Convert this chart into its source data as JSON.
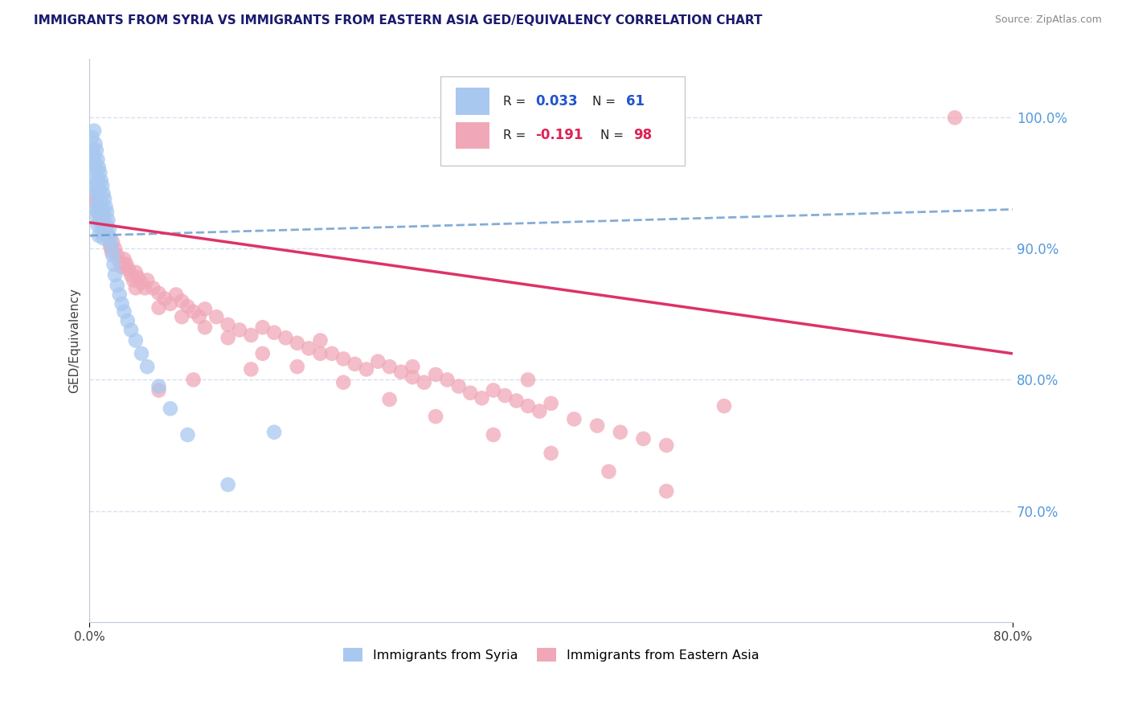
{
  "title": "IMMIGRANTS FROM SYRIA VS IMMIGRANTS FROM EASTERN ASIA GED/EQUIVALENCY CORRELATION CHART",
  "source": "Source: ZipAtlas.com",
  "ylabel": "GED/Equivalency",
  "ytick_values": [
    0.7,
    0.8,
    0.9,
    1.0
  ],
  "xlim": [
    0.0,
    0.8
  ],
  "ylim": [
    0.615,
    1.045
  ],
  "color_syria": "#a8c8f0",
  "color_eastern": "#f0a8b8",
  "trendline_syria_color": "#6699cc",
  "trendline_eastern_color": "#dd3366",
  "background_color": "#ffffff",
  "grid_color": "#d8dff0",
  "r_syria": 0.033,
  "n_syria": 61,
  "r_eastern": -0.191,
  "n_eastern": 98,
  "syria_x": [
    0.002,
    0.003,
    0.003,
    0.004,
    0.004,
    0.004,
    0.005,
    0.005,
    0.005,
    0.005,
    0.006,
    0.006,
    0.006,
    0.006,
    0.007,
    0.007,
    0.007,
    0.007,
    0.008,
    0.008,
    0.008,
    0.008,
    0.009,
    0.009,
    0.009,
    0.01,
    0.01,
    0.01,
    0.011,
    0.011,
    0.011,
    0.012,
    0.012,
    0.012,
    0.013,
    0.013,
    0.014,
    0.014,
    0.015,
    0.015,
    0.016,
    0.017,
    0.018,
    0.019,
    0.02,
    0.021,
    0.022,
    0.024,
    0.026,
    0.028,
    0.03,
    0.033,
    0.036,
    0.04,
    0.045,
    0.05,
    0.06,
    0.07,
    0.085,
    0.12,
    0.16
  ],
  "syria_y": [
    0.985,
    0.975,
    0.96,
    0.99,
    0.97,
    0.95,
    0.98,
    0.965,
    0.948,
    0.93,
    0.975,
    0.96,
    0.942,
    0.925,
    0.968,
    0.952,
    0.935,
    0.918,
    0.962,
    0.945,
    0.928,
    0.91,
    0.958,
    0.94,
    0.922,
    0.952,
    0.935,
    0.918,
    0.948,
    0.93,
    0.912,
    0.942,
    0.925,
    0.908,
    0.938,
    0.92,
    0.932,
    0.915,
    0.928,
    0.91,
    0.922,
    0.915,
    0.908,
    0.902,
    0.895,
    0.888,
    0.88,
    0.872,
    0.865,
    0.858,
    0.852,
    0.845,
    0.838,
    0.83,
    0.82,
    0.81,
    0.795,
    0.778,
    0.758,
    0.72,
    0.76
  ],
  "eastern_x": [
    0.005,
    0.006,
    0.007,
    0.008,
    0.009,
    0.01,
    0.011,
    0.012,
    0.013,
    0.014,
    0.015,
    0.016,
    0.017,
    0.018,
    0.019,
    0.02,
    0.022,
    0.024,
    0.026,
    0.028,
    0.03,
    0.032,
    0.034,
    0.036,
    0.038,
    0.04,
    0.042,
    0.045,
    0.048,
    0.05,
    0.055,
    0.06,
    0.065,
    0.07,
    0.075,
    0.08,
    0.085,
    0.09,
    0.095,
    0.1,
    0.11,
    0.12,
    0.13,
    0.14,
    0.15,
    0.16,
    0.17,
    0.18,
    0.19,
    0.2,
    0.21,
    0.22,
    0.23,
    0.24,
    0.25,
    0.26,
    0.27,
    0.28,
    0.29,
    0.3,
    0.31,
    0.32,
    0.33,
    0.34,
    0.35,
    0.36,
    0.37,
    0.38,
    0.39,
    0.4,
    0.42,
    0.44,
    0.46,
    0.48,
    0.5,
    0.04,
    0.06,
    0.08,
    0.1,
    0.12,
    0.15,
    0.18,
    0.22,
    0.26,
    0.3,
    0.35,
    0.4,
    0.45,
    0.5,
    0.38,
    0.28,
    0.2,
    0.14,
    0.09,
    0.06,
    0.03,
    0.55,
    0.75
  ],
  "eastern_y": [
    0.94,
    0.935,
    0.928,
    0.932,
    0.926,
    0.93,
    0.924,
    0.92,
    0.916,
    0.912,
    0.918,
    0.91,
    0.906,
    0.902,
    0.898,
    0.905,
    0.9,
    0.895,
    0.89,
    0.886,
    0.892,
    0.888,
    0.884,
    0.88,
    0.876,
    0.882,
    0.878,
    0.874,
    0.87,
    0.876,
    0.87,
    0.866,
    0.862,
    0.858,
    0.865,
    0.86,
    0.856,
    0.852,
    0.848,
    0.854,
    0.848,
    0.842,
    0.838,
    0.834,
    0.84,
    0.836,
    0.832,
    0.828,
    0.824,
    0.83,
    0.82,
    0.816,
    0.812,
    0.808,
    0.814,
    0.81,
    0.806,
    0.802,
    0.798,
    0.804,
    0.8,
    0.795,
    0.79,
    0.786,
    0.792,
    0.788,
    0.784,
    0.78,
    0.776,
    0.782,
    0.77,
    0.765,
    0.76,
    0.755,
    0.75,
    0.87,
    0.855,
    0.848,
    0.84,
    0.832,
    0.82,
    0.81,
    0.798,
    0.785,
    0.772,
    0.758,
    0.744,
    0.73,
    0.715,
    0.8,
    0.81,
    0.82,
    0.808,
    0.8,
    0.792,
    0.888,
    0.78,
    1.0
  ]
}
